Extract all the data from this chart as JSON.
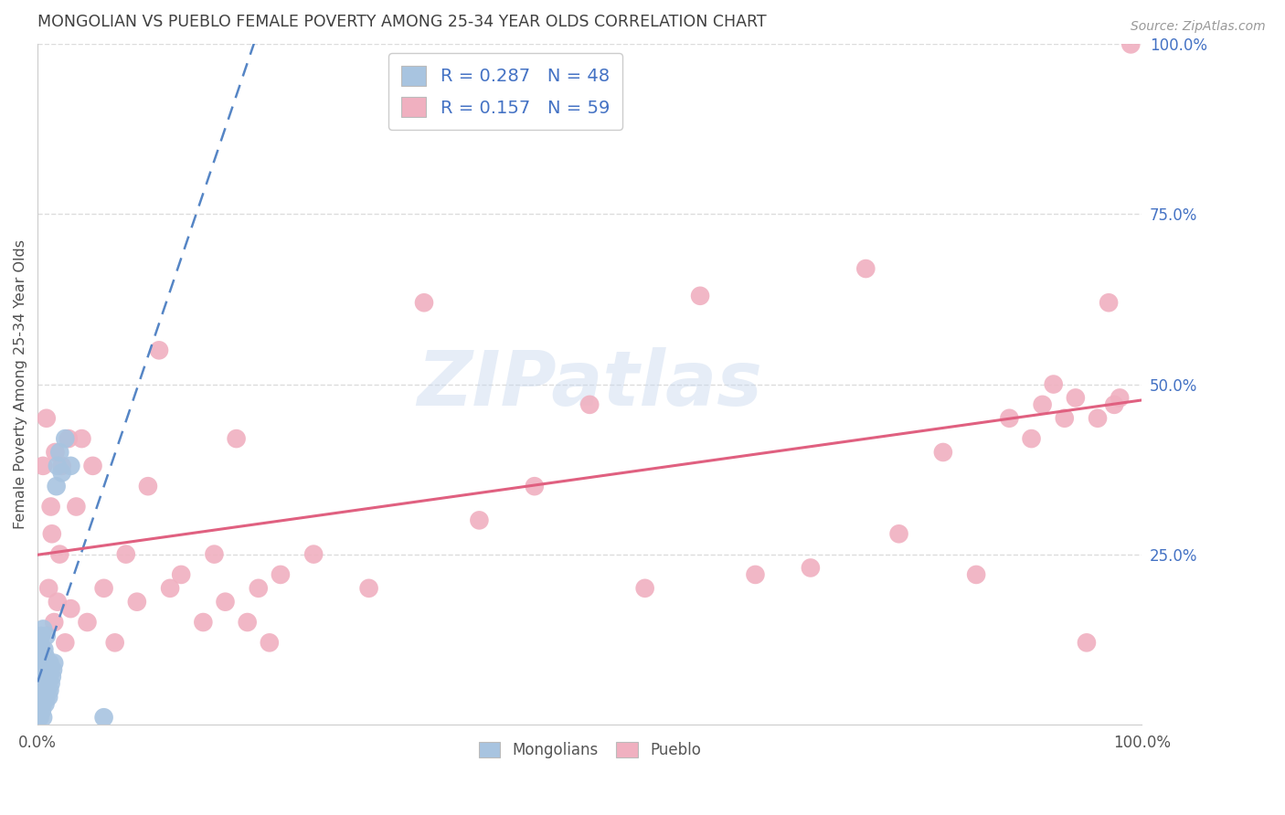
{
  "title": "MONGOLIAN VS PUEBLO FEMALE POVERTY AMONG 25-34 YEAR OLDS CORRELATION CHART",
  "source": "Source: ZipAtlas.com",
  "ylabel": "Female Poverty Among 25-34 Year Olds",
  "xlim": [
    0.0,
    1.0
  ],
  "ylim": [
    0.0,
    1.0
  ],
  "mongolian_color": "#a8c4e0",
  "pueblo_color": "#f0b0c0",
  "mongolian_line_color": "#5585c5",
  "pueblo_line_color": "#e06080",
  "mongolian_R": 0.287,
  "mongolian_N": 48,
  "pueblo_R": 0.157,
  "pueblo_N": 59,
  "legend_label_mongolian": "Mongolians",
  "legend_label_pueblo": "Pueblo",
  "watermark_text": "ZIPatlas",
  "title_color": "#404040",
  "axis_label_color": "#505050",
  "tick_color_right": "#4472c4",
  "grid_color": "#dcdcdc",
  "mongolian_x": [
    0.001,
    0.001,
    0.001,
    0.002,
    0.002,
    0.002,
    0.002,
    0.002,
    0.003,
    0.003,
    0.003,
    0.003,
    0.003,
    0.004,
    0.004,
    0.004,
    0.004,
    0.005,
    0.005,
    0.005,
    0.005,
    0.005,
    0.006,
    0.006,
    0.006,
    0.007,
    0.007,
    0.007,
    0.008,
    0.008,
    0.008,
    0.009,
    0.009,
    0.01,
    0.01,
    0.011,
    0.011,
    0.012,
    0.013,
    0.014,
    0.015,
    0.017,
    0.018,
    0.02,
    0.022,
    0.025,
    0.03,
    0.06
  ],
  "mongolian_y": [
    0.02,
    0.05,
    0.08,
    0.01,
    0.03,
    0.06,
    0.09,
    0.12,
    0.02,
    0.04,
    0.07,
    0.1,
    0.13,
    0.02,
    0.05,
    0.08,
    0.11,
    0.01,
    0.03,
    0.06,
    0.09,
    0.14,
    0.04,
    0.07,
    0.11,
    0.03,
    0.06,
    0.1,
    0.04,
    0.08,
    0.13,
    0.05,
    0.09,
    0.04,
    0.08,
    0.05,
    0.09,
    0.06,
    0.07,
    0.08,
    0.09,
    0.35,
    0.38,
    0.4,
    0.37,
    0.42,
    0.38,
    0.01
  ],
  "pueblo_x": [
    0.005,
    0.008,
    0.01,
    0.012,
    0.013,
    0.015,
    0.016,
    0.018,
    0.02,
    0.022,
    0.025,
    0.028,
    0.03,
    0.035,
    0.04,
    0.045,
    0.05,
    0.06,
    0.07,
    0.08,
    0.09,
    0.1,
    0.11,
    0.12,
    0.13,
    0.15,
    0.16,
    0.17,
    0.18,
    0.19,
    0.2,
    0.21,
    0.22,
    0.25,
    0.3,
    0.35,
    0.4,
    0.45,
    0.5,
    0.55,
    0.6,
    0.65,
    0.7,
    0.75,
    0.78,
    0.82,
    0.85,
    0.88,
    0.9,
    0.91,
    0.92,
    0.93,
    0.94,
    0.95,
    0.96,
    0.97,
    0.975,
    0.98,
    0.99
  ],
  "pueblo_y": [
    0.38,
    0.45,
    0.2,
    0.32,
    0.28,
    0.15,
    0.4,
    0.18,
    0.25,
    0.38,
    0.12,
    0.42,
    0.17,
    0.32,
    0.42,
    0.15,
    0.38,
    0.2,
    0.12,
    0.25,
    0.18,
    0.35,
    0.55,
    0.2,
    0.22,
    0.15,
    0.25,
    0.18,
    0.42,
    0.15,
    0.2,
    0.12,
    0.22,
    0.25,
    0.2,
    0.62,
    0.3,
    0.35,
    0.47,
    0.2,
    0.63,
    0.22,
    0.23,
    0.67,
    0.28,
    0.4,
    0.22,
    0.45,
    0.42,
    0.47,
    0.5,
    0.45,
    0.48,
    0.12,
    0.45,
    0.62,
    0.47,
    0.48,
    1.0
  ]
}
